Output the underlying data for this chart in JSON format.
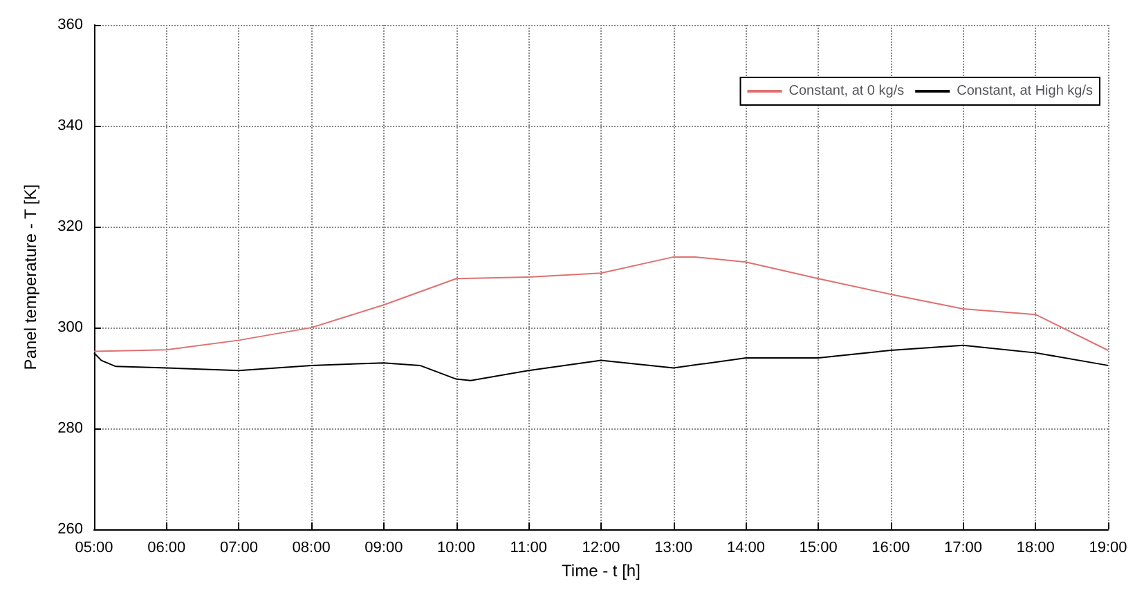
{
  "chart_data": {
    "type": "line",
    "xlabel": "Time - t [h]",
    "ylabel": "Panel temperature - T [K]",
    "xlim": [
      5,
      19
    ],
    "ylim": [
      260,
      360
    ],
    "xticks": [
      {
        "value": 5,
        "label": "05:00"
      },
      {
        "value": 6,
        "label": "06:00"
      },
      {
        "value": 7,
        "label": "07:00"
      },
      {
        "value": 8,
        "label": "08:00"
      },
      {
        "value": 9,
        "label": "09:00"
      },
      {
        "value": 10,
        "label": "10:00"
      },
      {
        "value": 11,
        "label": "11:00"
      },
      {
        "value": 12,
        "label": "12:00"
      },
      {
        "value": 13,
        "label": "13:00"
      },
      {
        "value": 14,
        "label": "14:00"
      },
      {
        "value": 15,
        "label": "15:00"
      },
      {
        "value": 16,
        "label": "16:00"
      },
      {
        "value": 17,
        "label": "17:00"
      },
      {
        "value": 18,
        "label": "18:00"
      },
      {
        "value": 19,
        "label": "19:00"
      }
    ],
    "yticks": [
      260,
      280,
      300,
      320,
      340,
      360
    ],
    "series": [
      {
        "name": "Constant, at 0 kg/s",
        "color": "#e07070",
        "x": [
          5,
          6,
          7,
          8,
          9,
          10,
          11,
          12,
          13,
          13.3,
          14,
          15,
          16,
          17,
          18,
          19
        ],
        "values": [
          295.3,
          295.6,
          297.5,
          300,
          304.5,
          309.7,
          310,
          310.8,
          314,
          314,
          313,
          309.7,
          306.6,
          303.7,
          302.6,
          295.5
        ]
      },
      {
        "name": "Constant, at High kg/s",
        "color": "#000000",
        "x": [
          5,
          5.1,
          5.3,
          6,
          7,
          8,
          9,
          9.5,
          10,
          10.2,
          11,
          12,
          13,
          14,
          15,
          16,
          17,
          18,
          19
        ],
        "values": [
          295,
          293.5,
          292.3,
          292,
          291.5,
          292.5,
          293,
          292.5,
          289.8,
          289.5,
          291.5,
          293.5,
          292,
          294,
          294,
          295.5,
          296.5,
          295,
          292.5
        ]
      }
    ],
    "grid": true,
    "legend": "top right",
    "marker": "none",
    "line_style": "solid"
  }
}
